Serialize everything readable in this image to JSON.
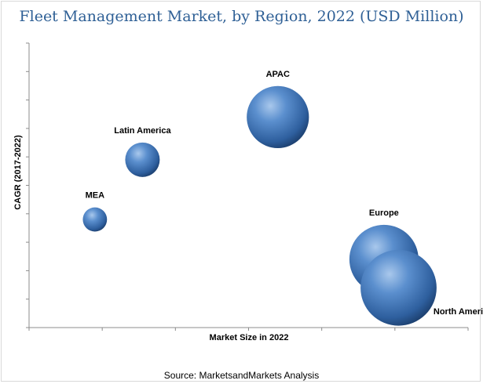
{
  "chart_data": {
    "type": "bubble",
    "title": "Fleet Management Market, by Region, 2022 (USD Million)",
    "xlabel": "Market Size in 2022",
    "ylabel": "CAGR (2017-2022)",
    "source": "Source: MarketsandMarkets Analysis",
    "grid": false,
    "legend": "none",
    "xlim": [
      0,
      12
    ],
    "ylim": [
      0,
      10
    ],
    "bubble_color": "#3a6fb0",
    "points": [
      {
        "label": "APAC",
        "x": 6.8,
        "y": 7.4,
        "size": 1.8
      },
      {
        "label": "Latin America",
        "x": 3.1,
        "y": 5.9,
        "size": 1.0
      },
      {
        "label": "MEA",
        "x": 1.8,
        "y": 3.8,
        "size": 0.7
      },
      {
        "label": "Europe",
        "x": 9.7,
        "y": 2.4,
        "size": 2.0
      },
      {
        "label": "North America",
        "x": 10.1,
        "y": 1.4,
        "size": 2.2
      }
    ]
  }
}
